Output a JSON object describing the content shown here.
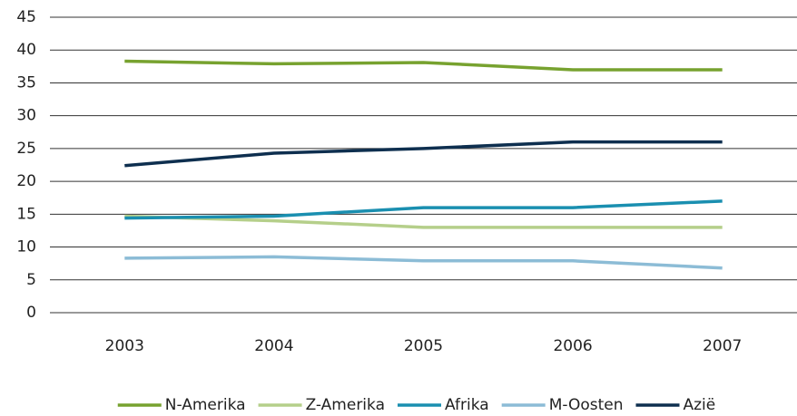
{
  "chart_data": {
    "type": "line",
    "categories": [
      "2003",
      "2004",
      "2005",
      "2006",
      "2007"
    ],
    "series": [
      {
        "name": "N-Amerika",
        "color": "#77a22f",
        "values": [
          38.3,
          37.9,
          38.1,
          37.0,
          37.0
        ]
      },
      {
        "name": "Z-Amerika",
        "color": "#b5cf8a",
        "values": [
          14.7,
          14.0,
          13.0,
          13.0,
          13.0
        ]
      },
      {
        "name": "Afrika",
        "color": "#1a8fb0",
        "values": [
          14.4,
          14.7,
          16.0,
          16.0,
          17.0
        ]
      },
      {
        "name": "M-Oosten",
        "color": "#8cbcd6",
        "values": [
          8.3,
          8.5,
          7.9,
          7.9,
          6.8
        ]
      },
      {
        "name": "Azië",
        "color": "#0e2f4f",
        "values": [
          22.4,
          24.3,
          25.0,
          26.0,
          26.0
        ]
      }
    ],
    "ylim": [
      0,
      45
    ],
    "yticks": [
      0,
      5,
      10,
      15,
      20,
      25,
      30,
      35,
      40,
      45
    ],
    "grid": true,
    "legend": "bottom"
  }
}
